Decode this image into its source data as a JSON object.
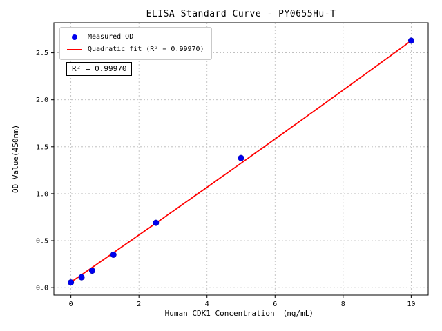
{
  "chart_data": {
    "type": "scatter",
    "title": "ELISA Standard Curve - PY0655Hu-T",
    "xlabel": "Human CDK1 Concentration （ng/mL）",
    "ylabel": "OD Value(450nm)",
    "xlim": [
      -0.5,
      10.5
    ],
    "ylim": [
      -0.08,
      2.82
    ],
    "xticks": [
      0,
      2,
      4,
      6,
      8,
      10
    ],
    "xtick_labels": [
      "0",
      "2",
      "4",
      "6",
      "8",
      "10"
    ],
    "yticks": [
      0.0,
      0.5,
      1.0,
      1.5,
      2.0,
      2.5
    ],
    "ytick_labels": [
      "0.0",
      "0.5",
      "1.0",
      "1.5",
      "2.0",
      "2.5"
    ],
    "grid": true,
    "legend_position": "upper left",
    "series": [
      {
        "name": "Measured OD",
        "type": "scatter",
        "color": "#0000ee",
        "x": [
          0,
          0.313,
          0.625,
          1.25,
          2.5,
          5,
          10
        ],
        "y": [
          0.055,
          0.11,
          0.18,
          0.35,
          0.69,
          1.38,
          2.63
        ]
      },
      {
        "name": "Quadratic fit (R² = 0.99970)",
        "type": "line",
        "color": "#ff0000",
        "fit": {
          "kind": "quadratic",
          "a": 0.058,
          "b": 0.2496,
          "c": 0.00075,
          "x_range": [
            0,
            10
          ]
        }
      }
    ],
    "annotation": "R² = 0.99970"
  }
}
